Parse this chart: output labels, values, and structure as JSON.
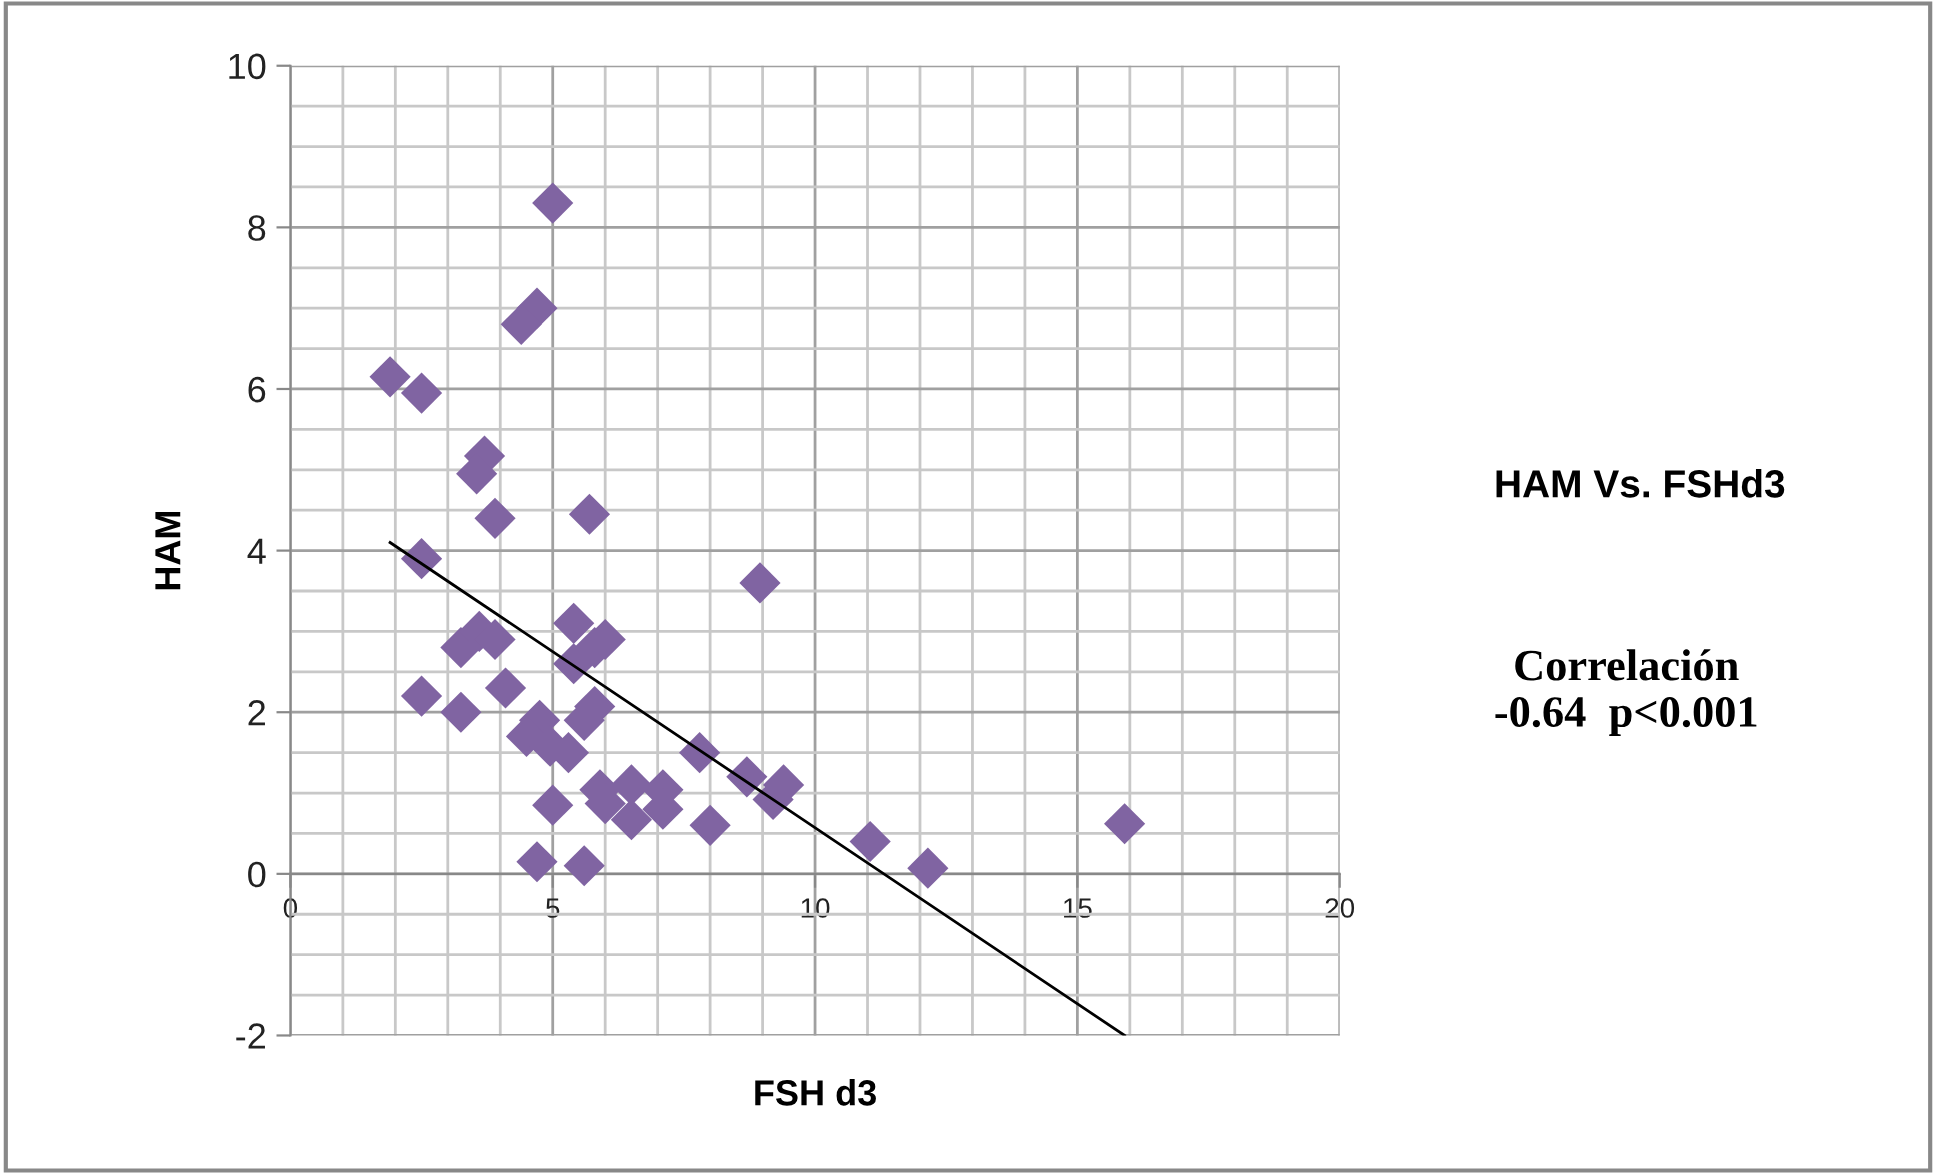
{
  "chart_data": {
    "type": "scatter",
    "xlabel": "FSH d3",
    "ylabel": "HAM",
    "annotations": [
      "HAM Vs. FSHd3",
      "Correlación\n-0.64  p<0.001"
    ],
    "xlim": [
      0,
      20
    ],
    "ylim": [
      -2,
      10
    ],
    "xticks": [
      0,
      5,
      10,
      15,
      20
    ],
    "yticks": [
      -2,
      0,
      2,
      4,
      6,
      8,
      10
    ],
    "grid": true,
    "marker": "diamond",
    "legend": false,
    "series": [
      {
        "color": "#8064a2",
        "x": [
          5.0,
          4.7,
          4.4,
          1.9,
          2.5,
          3.7,
          3.55,
          3.9,
          5.7,
          2.5,
          8.95,
          5.4,
          6.0,
          5.8,
          5.4,
          3.25,
          3.6,
          3.9,
          4.1,
          2.5,
          3.25,
          5.8,
          5.6,
          4.75,
          4.5,
          4.95,
          5.3,
          5.0,
          4.7,
          5.6,
          5.9,
          6.0,
          6.5,
          6.5,
          7.1,
          7.1,
          7.8,
          8.0,
          8.7,
          9.2,
          9.4,
          11.05,
          12.15,
          15.9
        ],
        "values": [
          8.3,
          7.0,
          6.8,
          6.15,
          5.95,
          5.17,
          4.95,
          4.4,
          4.45,
          3.9,
          3.6,
          3.1,
          2.9,
          2.8,
          2.6,
          2.8,
          3.0,
          2.9,
          2.3,
          2.2,
          2.0,
          2.07,
          1.9,
          1.9,
          1.7,
          1.58,
          1.5,
          0.85,
          0.15,
          0.1,
          1.04,
          0.87,
          0.67,
          1.1,
          1.04,
          0.8,
          1.5,
          0.6,
          1.2,
          0.92,
          1.1,
          0.4,
          0.07,
          0.62
        ]
      },
      {
        "type": "line",
        "marker": "none",
        "color": "#000000",
        "x": [
          1.9,
          15.9
        ],
        "values": [
          4.1,
          -2.0
        ]
      }
    ]
  }
}
